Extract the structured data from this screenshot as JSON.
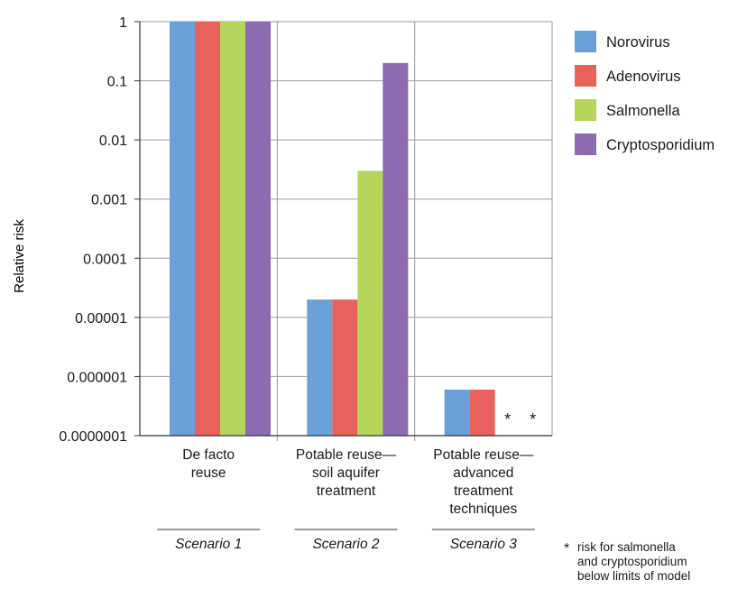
{
  "chart_data": {
    "type": "bar",
    "scale": "log",
    "ylabel": "Relative risk",
    "ylim": [
      1e-07,
      1
    ],
    "y_ticks": [
      {
        "value": 1,
        "label": "1"
      },
      {
        "value": 0.1,
        "label": "0.1"
      },
      {
        "value": 0.01,
        "label": "0.01"
      },
      {
        "value": 0.001,
        "label": "0.001"
      },
      {
        "value": 0.0001,
        "label": "0.0001"
      },
      {
        "value": 1e-05,
        "label": "0.00001"
      },
      {
        "value": 1e-06,
        "label": "0.000001"
      },
      {
        "value": 1e-07,
        "label": "0.0000001"
      }
    ],
    "grid": true,
    "legend_position": "top-right",
    "categories": [
      {
        "lines": [
          "De facto",
          "reuse"
        ],
        "scenario": "Scenario 1"
      },
      {
        "lines": [
          "Potable reuse—",
          "soil aquifer",
          "treatment"
        ],
        "scenario": "Scenario 2"
      },
      {
        "lines": [
          "Potable reuse—",
          "advanced",
          "treatment",
          "techniques"
        ],
        "scenario": "Scenario 3"
      }
    ],
    "series": [
      {
        "name": "Norovirus",
        "color": "#6a9fd8",
        "values": [
          1,
          2e-05,
          6e-07
        ]
      },
      {
        "name": "Adenovirus",
        "color": "#e8615a",
        "values": [
          1,
          2e-05,
          6e-07
        ]
      },
      {
        "name": "Salmonella",
        "color": "#b5d55a",
        "values": [
          1,
          0.003,
          null
        ]
      },
      {
        "name": "Cryptosporidium",
        "color": "#8c6bb1",
        "values": [
          1,
          0.2,
          null
        ]
      }
    ],
    "below_limit_marker": "*",
    "footnote": [
      {
        "mark": "*",
        "text": "risk for salmonella"
      },
      {
        "mark": "",
        "text": "and cryptosporidium"
      },
      {
        "mark": "",
        "text": "below limits of model"
      }
    ]
  }
}
